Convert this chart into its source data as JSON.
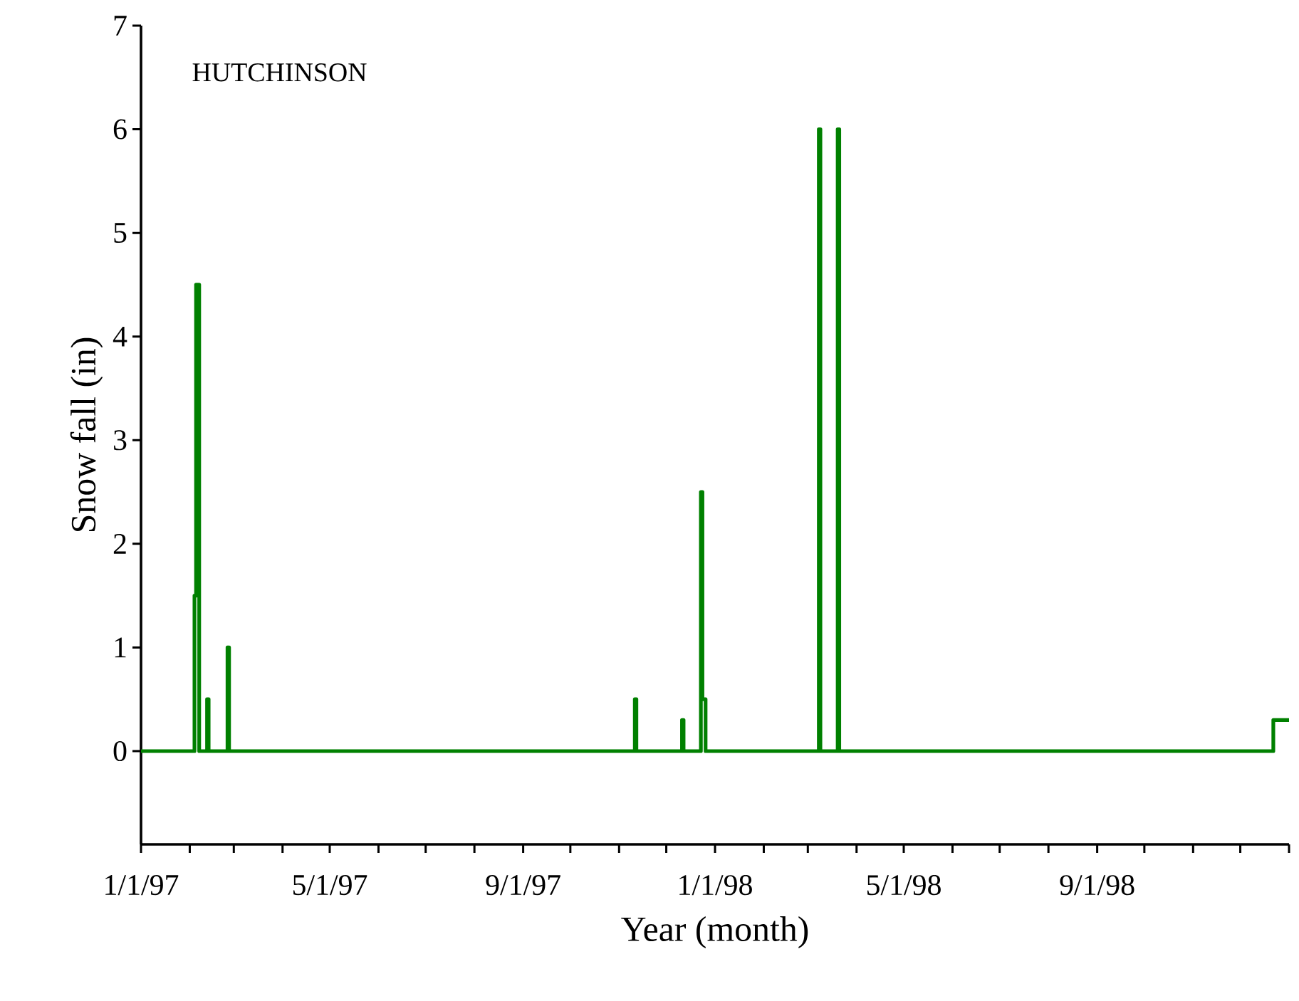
{
  "chart_data": {
    "type": "line",
    "title": "HUTCHINSON",
    "xlabel": "Year (month)",
    "ylabel": "Snow fall (in)",
    "x": [
      "1997-01-01",
      "1997-02-04",
      "1997-02-04",
      "1997-02-05",
      "1997-02-05",
      "1997-02-07",
      "1997-02-07",
      "1997-02-12",
      "1997-02-12",
      "1997-02-13",
      "1997-02-13",
      "1997-02-25",
      "1997-02-25",
      "1997-02-26",
      "1997-02-26",
      "1997-11-11",
      "1997-11-11",
      "1997-11-12",
      "1997-11-12",
      "1997-12-11",
      "1997-12-11",
      "1997-12-12",
      "1997-12-12",
      "1997-12-23",
      "1997-12-23",
      "1997-12-24",
      "1997-12-24",
      "1997-12-26",
      "1997-12-26",
      "1998-03-08",
      "1998-03-08",
      "1998-03-09",
      "1998-03-09",
      "1998-03-20",
      "1998-03-20",
      "1998-03-21",
      "1998-03-21",
      "1998-12-22",
      "1998-12-22",
      "1999-01-01"
    ],
    "series": [
      {
        "color": "#008000",
        "values": [
          0,
          0,
          1.5,
          1.5,
          4.5,
          4.5,
          0,
          0,
          0.5,
          0.5,
          0,
          0,
          1.0,
          1.0,
          0,
          0,
          0.5,
          0.5,
          0,
          0,
          0.3,
          0.3,
          0,
          0,
          2.5,
          2.5,
          0.5,
          0.5,
          0,
          0,
          6,
          6,
          0,
          0,
          6,
          6,
          0,
          0,
          0.3,
          0.3
        ]
      }
    ],
    "xlim": [
      "1997-01-01",
      "1999-01-01"
    ],
    "xticks": [
      {
        "value": "1997-01-01",
        "label": "1/1/97"
      },
      {
        "value": "1997-02-01",
        "label": null
      },
      {
        "value": "1997-03-01",
        "label": null
      },
      {
        "value": "1997-04-01",
        "label": null
      },
      {
        "value": "1997-05-01",
        "label": "5/1/97"
      },
      {
        "value": "1997-06-01",
        "label": null
      },
      {
        "value": "1997-07-01",
        "label": null
      },
      {
        "value": "1997-08-01",
        "label": null
      },
      {
        "value": "1997-09-01",
        "label": "9/1/97"
      },
      {
        "value": "1997-10-01",
        "label": null
      },
      {
        "value": "1997-11-01",
        "label": null
      },
      {
        "value": "1997-12-01",
        "label": null
      },
      {
        "value": "1998-01-01",
        "label": "1/1/98"
      },
      {
        "value": "1998-02-01",
        "label": null
      },
      {
        "value": "1998-03-01",
        "label": null
      },
      {
        "value": "1998-04-01",
        "label": null
      },
      {
        "value": "1998-05-01",
        "label": "5/1/98"
      },
      {
        "value": "1998-06-01",
        "label": null
      },
      {
        "value": "1998-07-01",
        "label": null
      },
      {
        "value": "1998-08-01",
        "label": null
      },
      {
        "value": "1998-09-01",
        "label": "9/1/98"
      },
      {
        "value": "1998-10-01",
        "label": null
      },
      {
        "value": "1998-11-01",
        "label": null
      },
      {
        "value": "1998-12-01",
        "label": null
      },
      {
        "value": "1999-01-01",
        "label": null
      }
    ],
    "ylim": [
      -0.9,
      7
    ],
    "yticks": [
      0,
      1,
      2,
      3,
      4,
      5,
      6,
      7
    ],
    "grid": false,
    "marker": "none",
    "line_style": "solid"
  }
}
